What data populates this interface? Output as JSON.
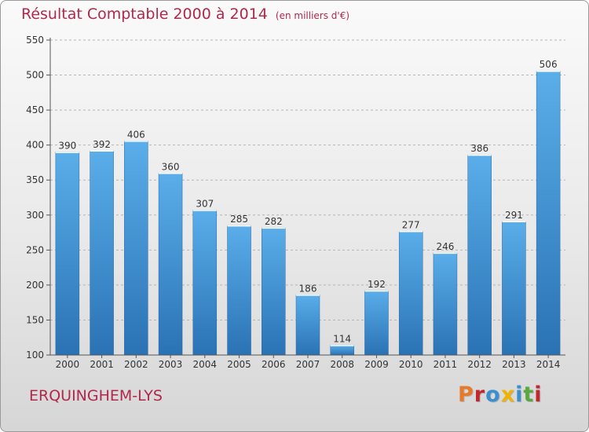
{
  "header": {
    "title": "Résultat Comptable 2000 à 2014",
    "unit": "(en milliers d'€)"
  },
  "footer": {
    "city": "ERQUINGHEM-LYS",
    "logo_text": "Proxiti",
    "logo_colors": [
      "#e7792b",
      "#c1272d",
      "#3a8fcf",
      "#f0b400",
      "#3a8fcf",
      "#59a83c",
      "#c1272d"
    ]
  },
  "colors": {
    "bar_top": "#5aaeea",
    "bar_bottom": "#2a72b4",
    "title": "#b0284a",
    "grid": "#b5b5b5"
  },
  "chart_data": {
    "type": "bar",
    "categories": [
      "2000",
      "2001",
      "2002",
      "2003",
      "2004",
      "2005",
      "2006",
      "2007",
      "2008",
      "2009",
      "2010",
      "2011",
      "2012",
      "2013",
      "2014"
    ],
    "values": [
      390,
      392,
      406,
      360,
      307,
      285,
      282,
      186,
      114,
      192,
      277,
      246,
      386,
      291,
      506
    ],
    "value_labels": [
      "390",
      "392",
      "406",
      "360",
      "307",
      "285",
      "282",
      "186",
      "114",
      "192",
      "277",
      "246",
      "386",
      "291",
      "506"
    ],
    "yticks": [
      "100",
      "150",
      "200",
      "250",
      "300",
      "350",
      "400",
      "450",
      "500",
      "550"
    ],
    "ylim": [
      100,
      550
    ],
    "grid": true,
    "legend": false
  }
}
